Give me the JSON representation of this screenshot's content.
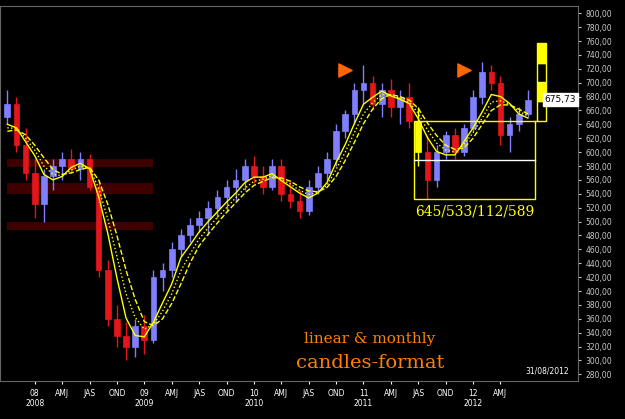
{
  "chart_data": {
    "type": "candlestick",
    "grid": false,
    "categories": [
      null,
      null,
      null,
      "08\n2008",
      null,
      null,
      "AMJ",
      null,
      null,
      "JAS",
      null,
      null,
      "OND",
      null,
      null,
      "09\n2009",
      null,
      null,
      "AMJ",
      null,
      null,
      "JAS",
      null,
      null,
      "OND",
      null,
      null,
      "10\n2010",
      null,
      null,
      "AMJ",
      null,
      null,
      "JAS",
      null,
      null,
      "OND",
      null,
      null,
      "11\n2011",
      null,
      null,
      "AMJ",
      null,
      null,
      "JAS",
      null,
      null,
      "OND",
      null,
      null,
      "12\n2012",
      null,
      null,
      "AMJ",
      null,
      null,
      null
    ],
    "open": [
      650,
      670,
      610,
      570,
      525,
      565,
      580,
      590,
      575,
      590,
      550,
      430,
      360,
      335,
      320,
      350,
      330,
      420,
      430,
      460,
      480,
      495,
      505,
      520,
      535,
      550,
      560,
      580,
      565,
      550,
      580,
      540,
      530,
      515,
      550,
      570,
      590,
      630,
      655,
      690,
      700,
      670,
      690,
      665,
      680,
      645,
      600,
      560,
      600,
      625,
      600,
      635,
      680,
      715,
      700,
      625,
      640,
      655
    ],
    "high": [
      690,
      680,
      635,
      590,
      575,
      590,
      600,
      605,
      600,
      598,
      560,
      445,
      380,
      355,
      360,
      365,
      430,
      440,
      470,
      490,
      505,
      515,
      530,
      545,
      560,
      575,
      590,
      595,
      580,
      590,
      590,
      560,
      545,
      560,
      580,
      600,
      640,
      660,
      700,
      725,
      710,
      700,
      705,
      690,
      700,
      665,
      625,
      610,
      630,
      635,
      640,
      690,
      730,
      725,
      710,
      650,
      665,
      690
    ],
    "low": [
      640,
      600,
      560,
      505,
      500,
      545,
      560,
      570,
      560,
      545,
      420,
      350,
      320,
      300,
      305,
      310,
      325,
      400,
      420,
      450,
      470,
      485,
      480,
      505,
      515,
      530,
      545,
      555,
      540,
      545,
      530,
      520,
      505,
      510,
      540,
      560,
      580,
      620,
      640,
      670,
      660,
      650,
      650,
      640,
      635,
      580,
      533,
      550,
      590,
      590,
      595,
      630,
      670,
      690,
      610,
      600,
      630,
      650
    ],
    "close": [
      670,
      610,
      570,
      525,
      565,
      580,
      590,
      575,
      590,
      550,
      430,
      360,
      335,
      320,
      350,
      330,
      420,
      430,
      460,
      480,
      495,
      505,
      520,
      535,
      550,
      560,
      580,
      565,
      550,
      580,
      540,
      530,
      515,
      550,
      570,
      590,
      630,
      655,
      690,
      700,
      670,
      690,
      665,
      680,
      645,
      600,
      560,
      600,
      625,
      600,
      635,
      680,
      715,
      700,
      625,
      640,
      655,
      675.73
    ],
    "colors": [
      "#7f7fff",
      "#e3161c",
      "#e3161c",
      "#e3161c",
      "#7f7fff",
      "#7f7fff",
      "#7f7fff",
      "#e3161c",
      "#7f7fff",
      "#e3161c",
      "#e3161c",
      "#e3161c",
      "#e3161c",
      "#e3161c",
      "#7f7fff",
      "#e3161c",
      "#7f7fff",
      "#7f7fff",
      "#7f7fff",
      "#7f7fff",
      "#7f7fff",
      "#7f7fff",
      "#7f7fff",
      "#7f7fff",
      "#7f7fff",
      "#7f7fff",
      "#7f7fff",
      "#e3161c",
      "#e3161c",
      "#7f7fff",
      "#e3161c",
      "#e3161c",
      "#e3161c",
      "#7f7fff",
      "#7f7fff",
      "#7f7fff",
      "#7f7fff",
      "#7f7fff",
      "#7f7fff",
      "#7f7fff",
      "#e3161c",
      "#7f7fff",
      "#e3161c",
      "#7f7fff",
      "#e3161c",
      "#ffff00",
      "#e3161c",
      "#7f7fff",
      "#7f7fff",
      "#e3161c",
      "#7f7fff",
      "#7f7fff",
      "#7f7fff",
      "#e3161c",
      "#e3161c",
      "#7f7fff",
      "#7f7fff",
      "#7f7fff"
    ],
    "series": [
      {
        "type": "line",
        "color": "#ffff00",
        "line_style": "solid",
        "values": [
          640,
          635,
          615,
          595,
          568,
          560,
          565,
          578,
          584,
          576,
          536,
          483,
          419,
          361,
          336,
          334,
          355,
          383,
          410,
          448,
          466,
          485,
          500,
          514,
          528,
          541,
          556,
          564,
          564,
          569,
          559,
          550,
          541,
          534,
          541,
          556,
          585,
          611,
          641,
          669,
          679,
          688,
          681,
          676,
          670,
          648,
          621,
          601,
          596,
          596,
          615,
          635,
          658,
          683,
          680,
          670,
          655,
          649
        ]
      },
      {
        "type": "line",
        "color": "#ffff00",
        "line_style": "dashed",
        "values": [
          630,
          632,
          625,
          610,
          592,
          575,
          568,
          570,
          575,
          578,
          560,
          525,
          480,
          430,
          388,
          356,
          350,
          360,
          382,
          410,
          440,
          465,
          482,
          498,
          513,
          527,
          541,
          552,
          558,
          563,
          563,
          558,
          550,
          544,
          543,
          549,
          565,
          588,
          614,
          641,
          662,
          677,
          683,
          680,
          675,
          663,
          642,
          624,
          610,
          604,
          606,
          620,
          640,
          660,
          668,
          668,
          662,
          655
        ]
      },
      {
        "type": "line",
        "color": "#ffff00",
        "line_style": "dotted",
        "values": [
          635,
          634,
          620,
          603,
          580,
          568,
          566,
          574,
          580,
          577,
          548,
          504,
          450,
          396,
          362,
          345,
          352,
          371,
          396,
          429,
          453,
          475,
          491,
          506,
          520,
          534,
          548,
          558,
          561,
          566,
          561,
          554,
          545,
          539,
          542,
          552,
          575,
          600,
          628,
          655,
          671,
          683,
          682,
          678,
          672,
          656,
          632,
          613,
          603,
          600,
          611,
          628,
          649,
          672,
          674,
          669,
          659,
          652
        ]
      }
    ],
    "ylim": [
      270,
      810
    ],
    "yticks": [
      {
        "value": 280,
        "label": "280,00"
      },
      {
        "value": 300,
        "label": "300,00"
      },
      {
        "value": 320,
        "label": "320,00"
      },
      {
        "value": 340,
        "label": "340,00"
      },
      {
        "value": 360,
        "label": "360,00"
      },
      {
        "value": 380,
        "label": "380,00"
      },
      {
        "value": 400,
        "label": "400,00"
      },
      {
        "value": 420,
        "label": "420,00"
      },
      {
        "value": 440,
        "label": "440,00"
      },
      {
        "value": 460,
        "label": "460,00"
      },
      {
        "value": 480,
        "label": "480,00"
      },
      {
        "value": 500,
        "label": "500,00"
      },
      {
        "value": 520,
        "label": "520,00"
      },
      {
        "value": 540,
        "label": "540,00"
      },
      {
        "value": 560,
        "label": "560,00"
      },
      {
        "value": 580,
        "label": "580,00"
      },
      {
        "value": 600,
        "label": "600,00"
      },
      {
        "value": 620,
        "label": "620,00"
      },
      {
        "value": 640,
        "label": "640,00"
      },
      {
        "value": 660,
        "label": "660,00"
      },
      {
        "value": 680,
        "label": "680,00"
      },
      {
        "value": 700,
        "label": "700,00"
      },
      {
        "value": 720,
        "label": "720,00"
      },
      {
        "value": 740,
        "label": "740,00"
      },
      {
        "value": 760,
        "label": "760,00"
      },
      {
        "value": 780,
        "label": "780,00"
      },
      {
        "value": 800,
        "label": "800,00"
      }
    ],
    "last_price": {
      "value": 675.73,
      "label": "675,73"
    },
    "range_box": {
      "label": "645/533/112/589",
      "top": 645,
      "bottom": 533,
      "range": 112,
      "mid": 589,
      "start": 45,
      "color": "#ffff00"
    },
    "markers": [
      {
        "position": 37,
        "value": 718,
        "color": "#ff6600",
        "marker": "triangle"
      },
      {
        "position": 50,
        "value": 718,
        "color": "#ff6600",
        "marker": "triangle"
      }
    ],
    "zones": [
      {
        "start": 0,
        "end": 16,
        "low": 578,
        "high": 590
      },
      {
        "start": 0,
        "end": 16,
        "low": 540,
        "high": 556
      },
      {
        "start": 0,
        "end": 16,
        "low": 488,
        "high": 500
      }
    ],
    "annotations": [
      {
        "text": "linear & monthly",
        "color": "#ff8000"
      },
      {
        "text": "candles-format",
        "color": "#ff8000"
      }
    ],
    "date": "31/08/2012"
  }
}
